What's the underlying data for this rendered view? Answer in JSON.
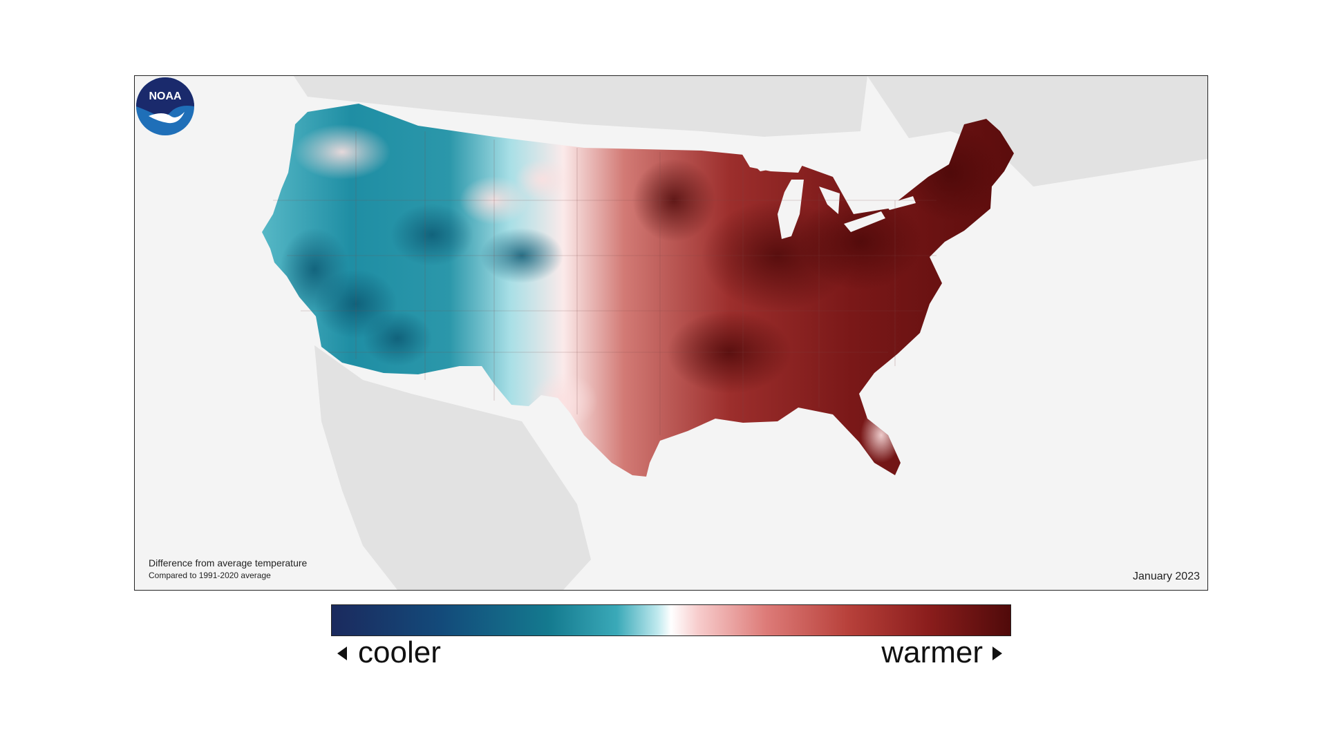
{
  "map": {
    "caption_title": "Difference from average temperature",
    "caption_subtitle": "Compared to 1991-2020 average",
    "date": "January 2023",
    "logo_text": "NOAA",
    "colors": {
      "background": "#f4f4f4",
      "land_outside": "#e2e2e2",
      "cool_dark": "#0d5a74",
      "cool": "#3aa3b3",
      "neutral": "#fbeaea",
      "warm": "#c0524c",
      "warm_dark": "#5a0c0c",
      "noaa_blue": "#1f6fb8",
      "noaa_navy": "#1a2a6c"
    }
  },
  "legend": {
    "left_label": "cooler",
    "right_label": "warmer",
    "left_icon": "triangle-left-icon",
    "right_icon": "triangle-right-icon"
  }
}
